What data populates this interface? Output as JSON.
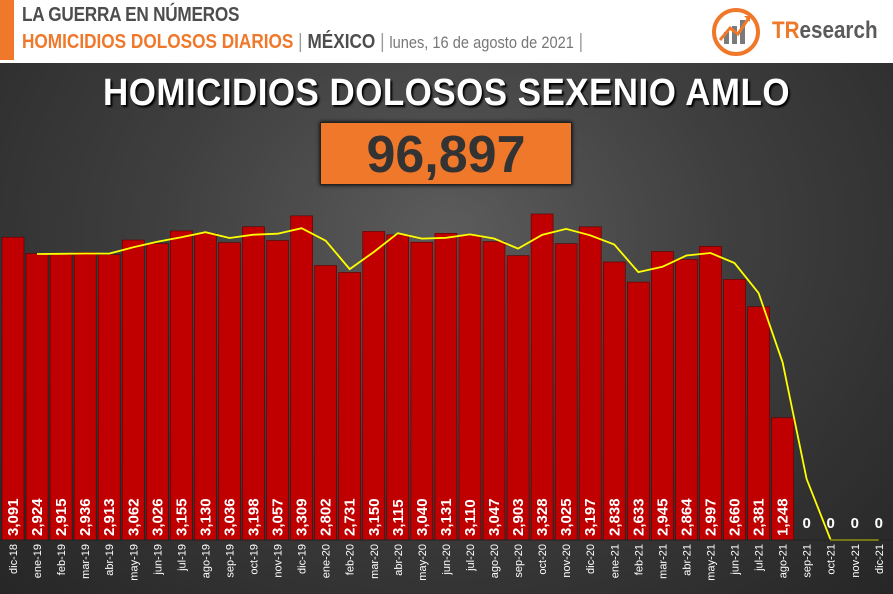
{
  "header": {
    "line1": "LA GUERRA EN NÚMEROS",
    "subtitle": "HOMICIDIOS DOLOSOS DIARIOS",
    "separator": "|",
    "country": "MÉXICO",
    "date": "lunes, 16 de agosto de 2021",
    "logo_tr": "TR",
    "logo_rest": "esearch"
  },
  "colors": {
    "accent": "#f0782a",
    "bar": "#c00000",
    "line": "#ffff00"
  },
  "chart_data": {
    "type": "bar",
    "title": "HOMICIDIOS DOLOSOS SEXENIO AMLO",
    "total": "96,897",
    "categories": [
      "dic-18",
      "ene-19",
      "feb-19",
      "mar-19",
      "abr-19",
      "may-19",
      "jun-19",
      "jul-19",
      "ago-19",
      "sep-19",
      "oct-19",
      "nov-19",
      "dic-19",
      "ene-20",
      "feb-20",
      "mar-20",
      "abr-20",
      "may-20",
      "jun-20",
      "jul-20",
      "ago-20",
      "sep-20",
      "oct-20",
      "nov-20",
      "dic-20",
      "ene-21",
      "feb-21",
      "mar-21",
      "abr-21",
      "may-21",
      "jun-21",
      "jul-21",
      "ago-21",
      "sep-21",
      "oct-21",
      "nov-21",
      "dic-21"
    ],
    "values": [
      3091,
      2924,
      2915,
      2936,
      2913,
      3062,
      3026,
      3155,
      3130,
      3036,
      3198,
      3057,
      3309,
      2802,
      2731,
      3150,
      3115,
      3040,
      3131,
      3110,
      3047,
      2903,
      3328,
      3025,
      3197,
      2838,
      2633,
      2945,
      2864,
      2997,
      2660,
      2381,
      1248,
      0,
      0,
      0,
      0
    ],
    "labels": [
      "3,091",
      "2,924",
      "2,915",
      "2,936",
      "2,913",
      "3,062",
      "3,026",
      "3,155",
      "3,130",
      "3,036",
      "3,198",
      "3,057",
      "3,309",
      "2,802",
      "2,731",
      "3,150",
      "3,115",
      "3,040",
      "3,131",
      "3,110",
      "3,047",
      "2,903",
      "3,328",
      "3,025",
      "3,197",
      "2,838",
      "2,633",
      "2,945",
      "2,864",
      "2,997",
      "2,660",
      "2,381",
      "1,248",
      "0",
      "0",
      "0",
      "0"
    ],
    "trend": {
      "type": "line",
      "values": [
        null,
        2920,
        2922,
        2925,
        2924,
        2988,
        3044,
        3090,
        3142,
        3083,
        3117,
        3127,
        3183,
        3055,
        2766,
        2940,
        3132,
        3077,
        3085,
        3120,
        3078,
        2975,
        3115,
        3176,
        3111,
        3017,
        2735,
        2789,
        2904,
        2930,
        2828,
        2520,
        1814,
        624,
        0,
        0,
        0
      ]
    },
    "ylim": [
      0,
      3500
    ],
    "grid": false,
    "legend": "none"
  }
}
